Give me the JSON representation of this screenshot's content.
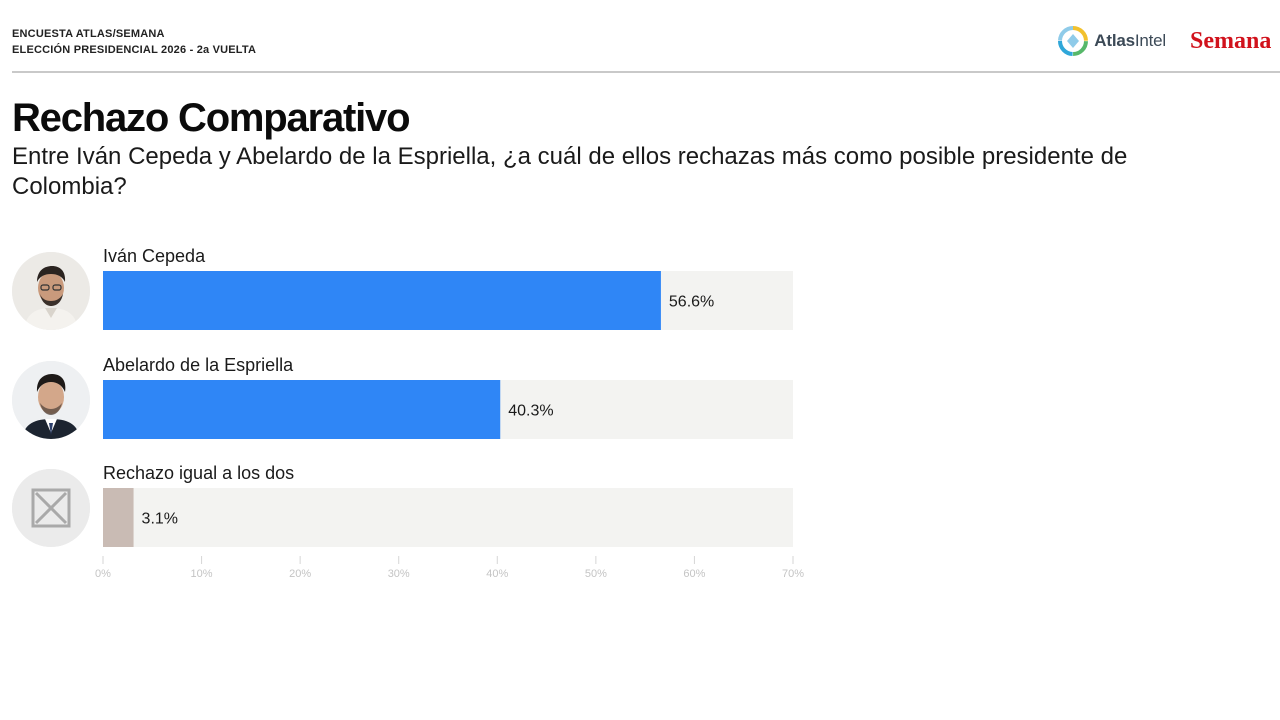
{
  "header": {
    "line1": "ENCUESTA ATLAS/SEMANA",
    "line2": "ELECCIÓN PRESIDENCIAL 2026 - 2a VUELTA"
  },
  "logos": {
    "atlas_prefix": "Atlas",
    "atlas_suffix": "Intel",
    "semana": "Semana",
    "atlas_icon": "atlasintel-logo-icon"
  },
  "colors": {
    "bar_primary": "#2f86f6",
    "bar_secondary": "#c9bbb4",
    "track": "#f3f3f1",
    "semana_red": "#d1121c"
  },
  "chart_data": {
    "type": "bar",
    "orientation": "horizontal",
    "title": "Rechazo Comparativo",
    "subtitle": "Entre Iván Cepeda y Abelardo de la Espriella, ¿a cuál de ellos rechazas más como posible presidente de Colombia?",
    "categories": [
      "Iván Cepeda",
      "Abelardo de la Espriella",
      "Rechazo igual a los dos"
    ],
    "values": [
      56.6,
      40.3,
      3.1
    ],
    "value_labels": [
      "56.6%",
      "40.3%",
      "3.1%"
    ],
    "category_icons": [
      "candidate-photo-icon",
      "candidate-photo-icon",
      "x-box-icon"
    ],
    "xlim": [
      0,
      70
    ],
    "xticks": [
      0,
      10,
      20,
      30,
      40,
      50,
      60,
      70
    ],
    "xtick_labels": [
      "0%",
      "10%",
      "20%",
      "30%",
      "40%",
      "50%",
      "60%",
      "70%"
    ],
    "grid": false,
    "legend": "none"
  }
}
